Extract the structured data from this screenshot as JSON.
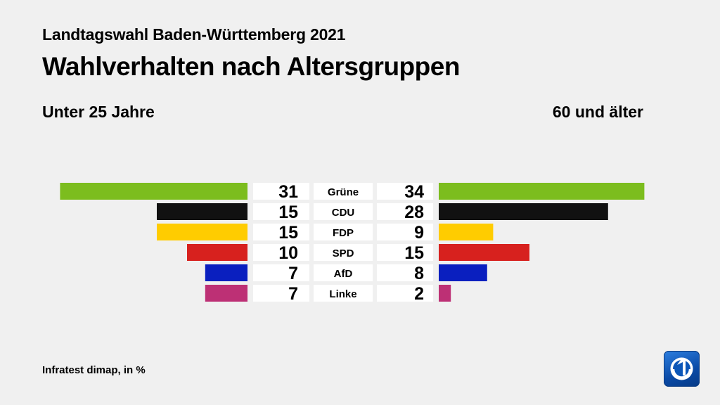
{
  "header": {
    "subtitle": "Landtagswahl Baden-Württemberg 2021",
    "title": "Wahlverhalten nach Altersgruppen"
  },
  "groups": {
    "left": "Unter 25 Jahre",
    "right": "60 und älter"
  },
  "footer": {
    "source": "Infratest dimap, in %"
  },
  "logo": {
    "icon": "ard-das-erste-logo-icon"
  },
  "chart_data": {
    "type": "bar",
    "orientation": "butterfly",
    "categories": [
      "Grüne",
      "CDU",
      "FDP",
      "SPD",
      "AfD",
      "Linke"
    ],
    "series": [
      {
        "name": "Unter 25 Jahre",
        "side": "left",
        "values": [
          31,
          15,
          15,
          10,
          7,
          7
        ]
      },
      {
        "name": "60 und älter",
        "side": "right",
        "values": [
          34,
          28,
          9,
          15,
          8,
          2
        ]
      }
    ],
    "colors": [
      "#7cbd1e",
      "#111111",
      "#ffcc00",
      "#d7211e",
      "#0a1fbf",
      "#bd3075"
    ],
    "unit": "%"
  }
}
